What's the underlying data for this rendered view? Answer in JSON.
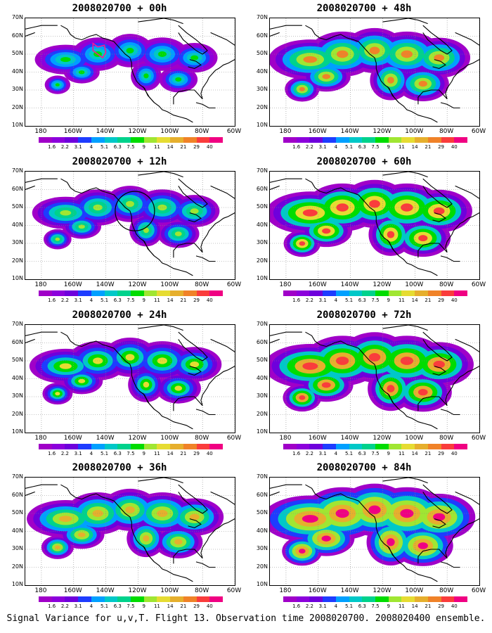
{
  "panels": [
    {
      "title": "2008020700 + 00h",
      "intensity": 0.35,
      "marker": "polygon"
    },
    {
      "title": "2008020700 + 12h",
      "intensity": 0.45,
      "marker": "circle"
    },
    {
      "title": "2008020700 + 24h",
      "intensity": 0.55,
      "marker": "none"
    },
    {
      "title": "2008020700 + 36h",
      "intensity": 0.65,
      "marker": "none"
    },
    {
      "title": "2008020700 + 48h",
      "intensity": 0.75,
      "marker": "none"
    },
    {
      "title": "2008020700 + 60h",
      "intensity": 0.85,
      "marker": "none"
    },
    {
      "title": "2008020700 + 72h",
      "intensity": 0.92,
      "marker": "none"
    },
    {
      "title": "2008020700 + 84h",
      "intensity": 1.0,
      "marker": "none"
    }
  ],
  "lat_labels": [
    "70N",
    "60N",
    "50N",
    "40N",
    "30N",
    "20N",
    "10N"
  ],
  "lon_labels": [
    "180",
    "160W",
    "140W",
    "120W",
    "100W",
    "80W",
    "60W"
  ],
  "colorbar": {
    "labels": [
      "1.6",
      "2.2",
      "3.1",
      "4",
      "5.1",
      "6.3",
      "7.5",
      "9",
      "11",
      "14",
      "21",
      "29",
      "40"
    ],
    "colors": [
      "#a000c8",
      "#8c00dc",
      "#6e00dc",
      "#1e3cff",
      "#00a0ff",
      "#00c8c8",
      "#00d28c",
      "#00dc00",
      "#a0e632",
      "#e6dc32",
      "#e6af2d",
      "#f08228",
      "#fa3c3c",
      "#f00082"
    ]
  },
  "caption": "Signal Variance for u,v,T. Flight 13. Observation time 2008020700. 2008020400 ensemble."
}
